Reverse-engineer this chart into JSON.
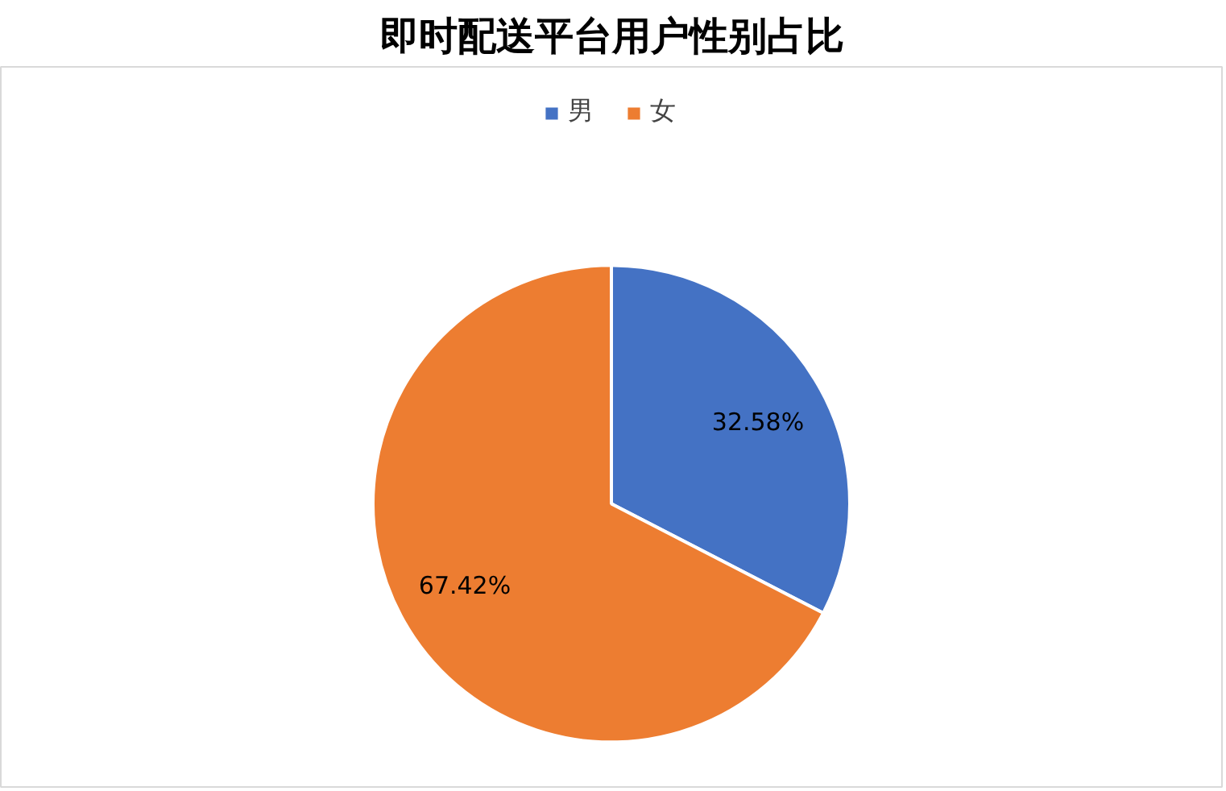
{
  "chart_data": {
    "type": "pie",
    "title": "即时配送平台用户性别占比",
    "categories": [
      "男",
      "女"
    ],
    "values": [
      32.58,
      67.42
    ],
    "colors": [
      "#4472c4",
      "#ed7d31"
    ],
    "value_labels": [
      "32.58%",
      "67.42%"
    ],
    "legend": "top"
  }
}
